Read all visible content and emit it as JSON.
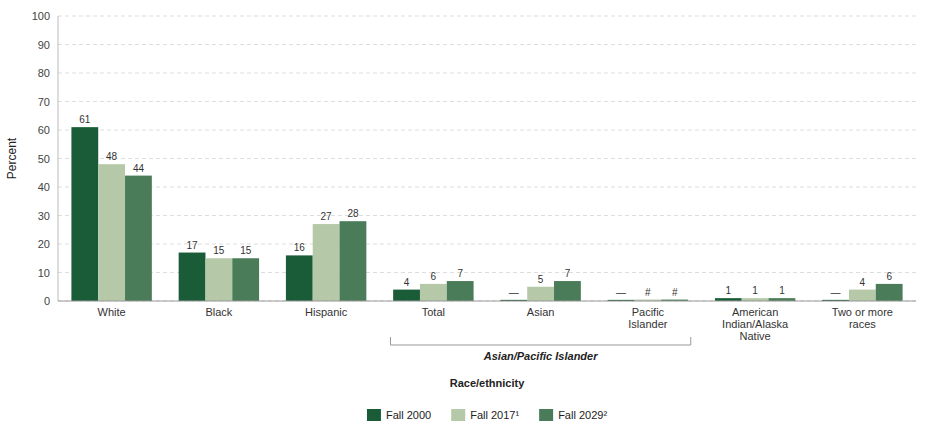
{
  "chart_data": {
    "type": "bar",
    "categories": [
      "White",
      "Black",
      "Hispanic",
      "Total",
      "Asian",
      "Pacific\nIslander",
      "American\nIndian/Alaska\nNative",
      "Two or more\nraces"
    ],
    "series": [
      {
        "name": "Fall 2000",
        "color": "#1a5c38",
        "values": [
          61,
          17,
          16,
          4,
          0.4,
          0.4,
          1,
          0.4
        ],
        "value_labels": [
          "61",
          "17",
          "16",
          "4",
          "—",
          "—",
          "1",
          "—"
        ]
      },
      {
        "name": "Fall 2017¹",
        "color": "#b5c9a8",
        "values": [
          48,
          15,
          27,
          6,
          5,
          0.5,
          1,
          4
        ],
        "value_labels": [
          "48",
          "15",
          "27",
          "6",
          "5",
          "#",
          "1",
          "4"
        ]
      },
      {
        "name": "Fall 2029²",
        "color": "#4a7c59",
        "values": [
          44,
          15,
          28,
          7,
          7,
          0.5,
          1,
          6
        ],
        "value_labels": [
          "44",
          "15",
          "28",
          "7",
          "7",
          "#",
          "1",
          "6"
        ]
      }
    ],
    "y_label": "Percent",
    "x_label": "Race/ethnicity",
    "annotations": [
      {
        "text": "Asian/Pacific Islander",
        "span": [
          "Total",
          "Pacific\nIslander"
        ]
      }
    ],
    "ylim": [
      0,
      100
    ],
    "yticks": [
      0,
      10,
      20,
      30,
      40,
      50,
      60,
      70,
      80,
      90,
      100
    ],
    "grid": true,
    "legend": "bottom",
    "data_labels": true
  }
}
